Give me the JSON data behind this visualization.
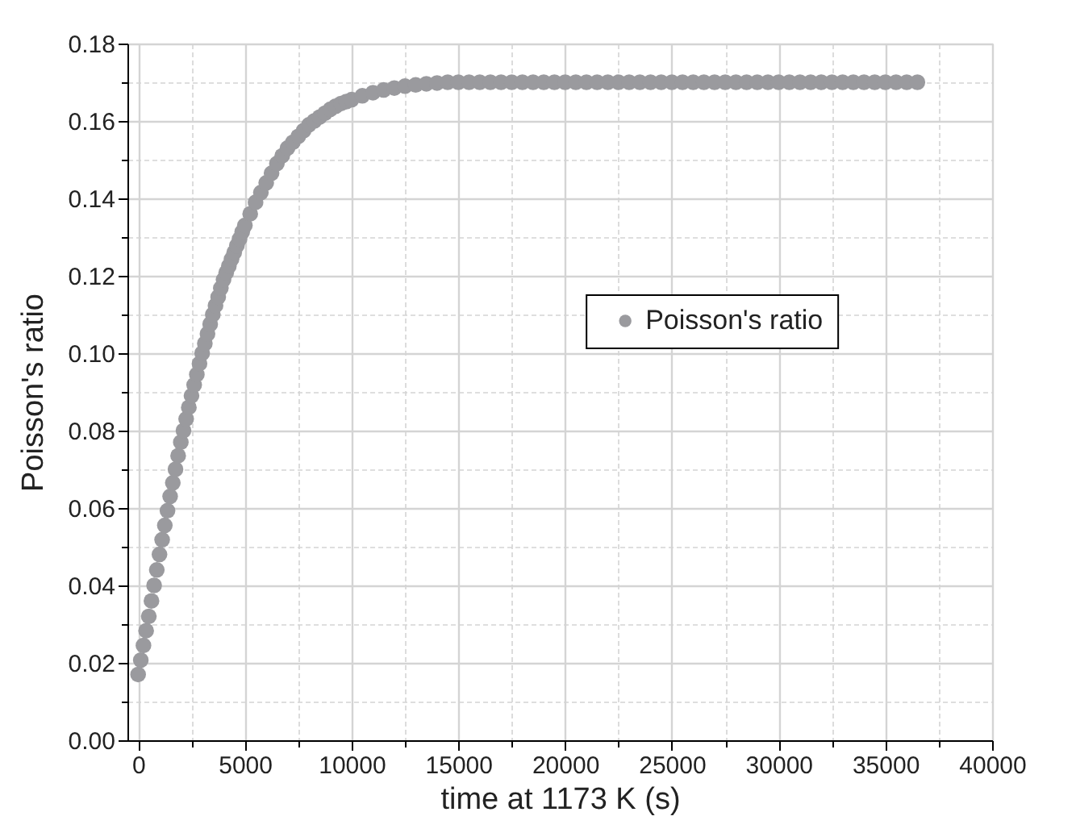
{
  "chart_data": {
    "type": "scatter",
    "xlabel": "time at 1173 K (s)",
    "ylabel": "Poisson's ratio",
    "xlim": [
      -500,
      40000
    ],
    "ylim": [
      0,
      0.18
    ],
    "xticks": [
      0,
      {
        "value": 2500,
        "label": null
      },
      5000,
      {
        "value": 7500,
        "label": null
      },
      10000,
      {
        "value": 12500,
        "label": null
      },
      15000,
      {
        "value": 17500,
        "label": null
      },
      20000,
      {
        "value": 22500,
        "label": null
      },
      25000,
      {
        "value": 27500,
        "label": null
      },
      30000,
      {
        "value": 32500,
        "label": null
      },
      35000,
      {
        "value": 37500,
        "label": null
      },
      40000
    ],
    "yticks": [
      {
        "value": 0,
        "label": "0.00"
      },
      {
        "value": 0.01,
        "label": null
      },
      {
        "value": 0.02,
        "label": "0.02"
      },
      {
        "value": 0.03,
        "label": null
      },
      {
        "value": 0.04,
        "label": "0.04"
      },
      {
        "value": 0.05,
        "label": null
      },
      {
        "value": 0.06,
        "label": "0.06"
      },
      {
        "value": 0.07,
        "label": null
      },
      {
        "value": 0.08,
        "label": "0.08"
      },
      {
        "value": 0.09,
        "label": null
      },
      {
        "value": 0.1,
        "label": "0.10"
      },
      {
        "value": 0.11,
        "label": null
      },
      {
        "value": 0.12,
        "label": "0.12"
      },
      {
        "value": 0.13,
        "label": null
      },
      {
        "value": 0.14,
        "label": "0.14"
      },
      {
        "value": 0.15,
        "label": null
      },
      {
        "value": 0.16,
        "label": "0.16"
      },
      {
        "value": 0.17,
        "label": null
      },
      {
        "value": 0.18,
        "label": "0.18"
      }
    ],
    "grid": true,
    "legend": "right",
    "marker": "circle",
    "series": [
      {
        "name": "Poisson's ratio",
        "color": "#9a9a9e",
        "x": [
          0,
          125,
          250,
          375,
          500,
          625,
          750,
          875,
          1000,
          1125,
          1250,
          1375,
          1500,
          1625,
          1750,
          1875,
          2000,
          2125,
          2250,
          2375,
          2500,
          2625,
          2750,
          2875,
          3000,
          3125,
          3250,
          3375,
          3500,
          3625,
          3750,
          3875,
          4000,
          4125,
          4250,
          4375,
          4500,
          4625,
          4750,
          4875,
          5000,
          5250,
          5500,
          5750,
          6000,
          6250,
          6500,
          6750,
          7000,
          7250,
          7500,
          7750,
          8000,
          8250,
          8500,
          8750,
          9000,
          9250,
          9500,
          9750,
          10000,
          10500,
          11000,
          11500,
          12000,
          12500,
          13000,
          13500,
          14000,
          14500,
          15000,
          15500,
          16000,
          16500,
          17000,
          17500,
          18000,
          18500,
          19000,
          19500,
          20000,
          20500,
          21000,
          21500,
          22000,
          22500,
          23000,
          23500,
          24000,
          24500,
          25000,
          25500,
          26000,
          26500,
          27000,
          27500,
          28000,
          28500,
          29000,
          29500,
          30000,
          30500,
          31000,
          31500,
          32000,
          32500,
          33000,
          33500,
          34000,
          34500,
          35000,
          35500,
          36000,
          36500
        ],
        "values": [
          0.017,
          0.0207,
          0.0245,
          0.0283,
          0.032,
          0.036,
          0.04,
          0.044,
          0.048,
          0.0518,
          0.0555,
          0.0593,
          0.063,
          0.0665,
          0.07,
          0.0735,
          0.077,
          0.08,
          0.083,
          0.086,
          0.089,
          0.0918,
          0.0945,
          0.0973,
          0.1,
          0.1025,
          0.105,
          0.1075,
          0.11,
          0.1123,
          0.1145,
          0.1168,
          0.119,
          0.1208,
          0.1225,
          0.1243,
          0.126,
          0.1278,
          0.1295,
          0.1313,
          0.133,
          0.136,
          0.139,
          0.1415,
          0.144,
          0.1465,
          0.149,
          0.151,
          0.153,
          0.1545,
          0.156,
          0.1575,
          0.159,
          0.16,
          0.161,
          0.162,
          0.163,
          0.1638,
          0.1645,
          0.165,
          0.1655,
          0.1665,
          0.1673,
          0.168,
          0.1685,
          0.169,
          0.1693,
          0.1696,
          0.1698,
          0.17,
          0.17,
          0.17,
          0.17,
          0.17,
          0.17,
          0.17,
          0.17,
          0.17,
          0.17,
          0.17,
          0.17,
          0.17,
          0.17,
          0.17,
          0.17,
          0.17,
          0.17,
          0.17,
          0.17,
          0.17,
          0.17,
          0.17,
          0.17,
          0.17,
          0.17,
          0.17,
          0.17,
          0.17,
          0.17,
          0.17,
          0.17,
          0.17,
          0.17,
          0.17,
          0.17,
          0.17,
          0.17,
          0.17,
          0.17,
          0.17,
          0.17,
          0.17,
          0.17,
          0.17
        ]
      }
    ]
  }
}
